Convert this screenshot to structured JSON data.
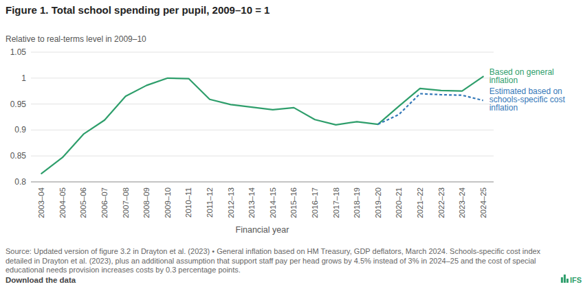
{
  "chart_data": {
    "type": "line",
    "title": "Figure 1. Total school spending per pupil, 2009–10 = 1",
    "y_label": "Relative to real-terms level in 2009–10",
    "x_label": "Financial year",
    "categories": [
      "2003–04",
      "2004–05",
      "2005–06",
      "2006–07",
      "2007–08",
      "2008–09",
      "2009–10",
      "2010–11",
      "2011–12",
      "2012–13",
      "2013–14",
      "2014–15",
      "2015–16",
      "2016–17",
      "2017–18",
      "2018–19",
      "2019–20",
      "2020–21",
      "2021–22",
      "2022–23",
      "2023–24",
      "2024–25"
    ],
    "series": [
      {
        "name": "Based on general inflation",
        "color": "#2e9e6b",
        "line_style": "solid",
        "values": [
          0.816,
          0.847,
          0.892,
          0.919,
          0.965,
          0.986,
          1.0,
          0.999,
          0.959,
          0.949,
          0.944,
          0.939,
          0.943,
          0.92,
          0.91,
          0.916,
          0.911,
          0.946,
          0.98,
          0.976,
          0.975,
          1.003
        ]
      },
      {
        "name": "Estimated based on schools-specific cost inflation",
        "color": "#3478b8",
        "line_style": "dashed",
        "values": [
          null,
          null,
          null,
          null,
          null,
          null,
          null,
          null,
          null,
          null,
          null,
          null,
          null,
          null,
          null,
          null,
          0.911,
          0.93,
          0.97,
          0.968,
          0.967,
          0.957
        ]
      }
    ],
    "ylim": [
      0.8,
      1.05
    ],
    "yticks": [
      0.8,
      0.85,
      0.9,
      0.95,
      1,
      1.05
    ],
    "grid": true,
    "source": "Source: Updated version of figure 3.2 in Drayton et al. (2023) • General inflation based on HM Treasury, GDP deflators, March 2024. Schools-specific cost index detailed in Drayton et al. (2023), plus an additional assumption that support staff pay per head grows by 4.5% instead of 3% in 2024–25 and the cost of special educational needs provision increases costs by 0.3 percentage points.",
    "annotations": [
      "Download the data",
      "IFS"
    ]
  }
}
